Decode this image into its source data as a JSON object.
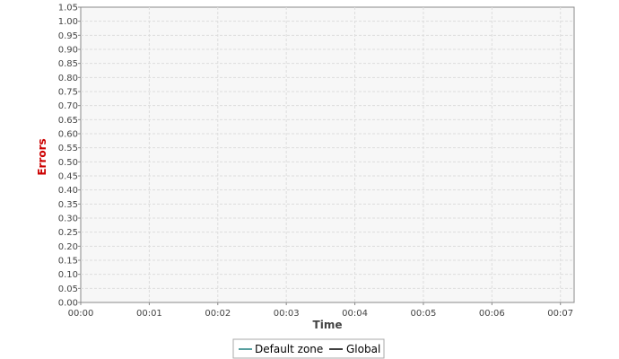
{
  "chart_data": {
    "type": "line",
    "title": "",
    "xlabel": "Time",
    "ylabel": "Errors",
    "x_ticks": [
      "00:00",
      "00:01",
      "00:02",
      "00:03",
      "00:04",
      "00:05",
      "00:06",
      "00:07"
    ],
    "x_range_minutes": [
      0,
      7.2
    ],
    "ylim": [
      0,
      1.05
    ],
    "y_tick_step": 0.05,
    "grid": true,
    "legend_position": "bottom",
    "series": [
      {
        "name": "Default zone",
        "color": "#1f7f7f",
        "values": []
      },
      {
        "name": "Global",
        "color": "#000000",
        "values": []
      }
    ],
    "colors": {
      "plot_background": "#f7f7f7",
      "grid": "#dddddd",
      "ylabel": "#cc0000",
      "xlabel": "#444444"
    }
  }
}
